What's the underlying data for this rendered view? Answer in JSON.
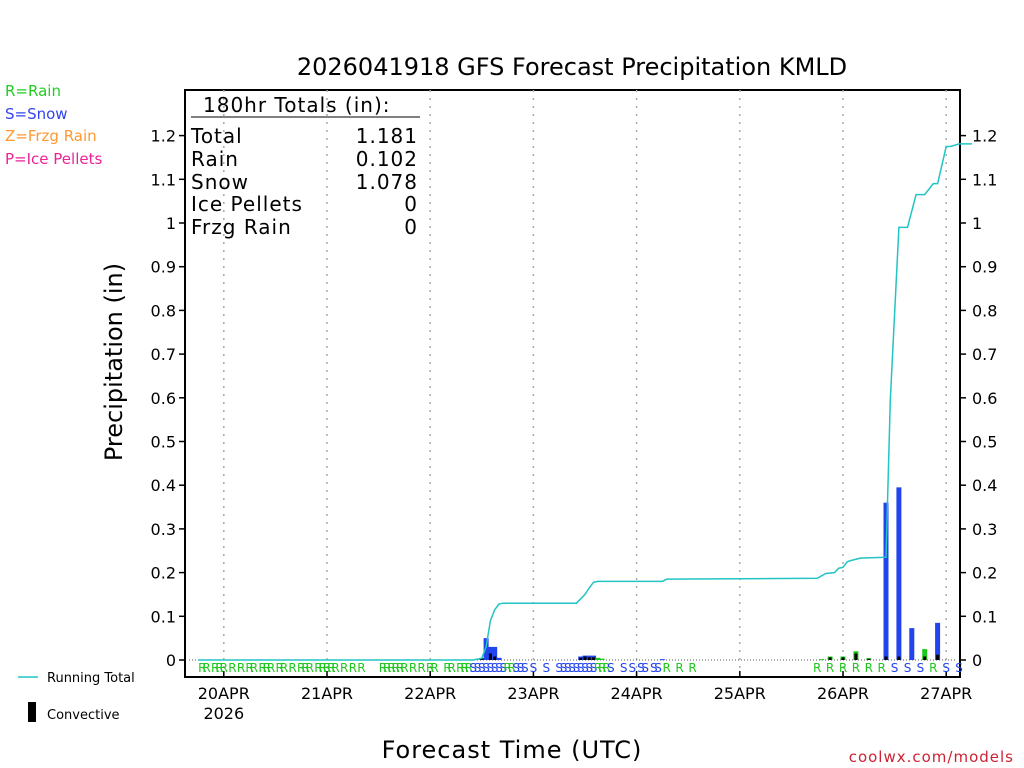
{
  "chart_data": {
    "type": "bar",
    "title": "2026041918 GFS Forecast Precipitation KMLD",
    "xlabel": "Forecast Time (UTC)",
    "ylabel": "Precipitation (in)",
    "ylim": [
      0,
      1.3
    ],
    "xlim_hours": [
      0,
      180
    ],
    "y_ticks": [
      0,
      0.1,
      0.2,
      0.3,
      0.4,
      0.5,
      0.6,
      0.7,
      0.8,
      0.9,
      1,
      1.1,
      1.2
    ],
    "y_tick_labels": [
      "0",
      "0.1",
      "0.2",
      "0.3",
      "0.4",
      "0.5",
      "0.6",
      "0.7",
      "0.8",
      "0.9",
      "1",
      "1.1",
      "1.2"
    ],
    "x_ticks": [
      {
        "hour": 6,
        "label": "20APR",
        "sub": "2026"
      },
      {
        "hour": 30,
        "label": "21APR"
      },
      {
        "hour": 54,
        "label": "22APR"
      },
      {
        "hour": 78,
        "label": "23APR"
      },
      {
        "hour": 102,
        "label": "24APR"
      },
      {
        "hour": 126,
        "label": "25APR"
      },
      {
        "hour": 150,
        "label": "26APR"
      },
      {
        "hour": 174,
        "label": "27APR"
      }
    ],
    "legend_types": [
      {
        "text": "R=Rain",
        "color": "#22cc22"
      },
      {
        "text": "S=Snow",
        "color": "#3344ee"
      },
      {
        "text": "Z=Frzg Rain",
        "color": "#ff9933"
      },
      {
        "text": "P=Ice Pellets",
        "color": "#ee2299"
      }
    ],
    "legend_lines": {
      "running_total": "Running Total",
      "convective": "Convective"
    },
    "totals": {
      "header": "180hr Totals (in):",
      "rows": [
        {
          "label": "Total",
          "value": "1.181"
        },
        {
          "label": "Rain",
          "value": "0.102"
        },
        {
          "label": "Snow",
          "value": "1.078"
        },
        {
          "label": "Ice Pellets",
          "value": "0"
        },
        {
          "label": "Frzg Rain",
          "value": "0"
        }
      ]
    },
    "running_total": {
      "hours": [
        0,
        64,
        66,
        67,
        68,
        69,
        70,
        71,
        88,
        90,
        91,
        92,
        93,
        108,
        109,
        126,
        144,
        146,
        148,
        149,
        150,
        151,
        152,
        154,
        160,
        161,
        163,
        165,
        167,
        169,
        171,
        172,
        174,
        175,
        177,
        180
      ],
      "values": [
        0,
        0,
        0.004,
        0.03,
        0.09,
        0.115,
        0.128,
        0.13,
        0.13,
        0.15,
        0.165,
        0.178,
        0.18,
        0.18,
        0.185,
        0.186,
        0.187,
        0.198,
        0.2,
        0.21,
        0.212,
        0.225,
        0.228,
        0.233,
        0.235,
        0.595,
        0.99,
        0.99,
        1.065,
        1.065,
        1.09,
        1.09,
        1.175,
        1.175,
        1.181,
        1.181
      ]
    },
    "bars": [
      {
        "hour": 66,
        "value": 0.004,
        "type": "snow"
      },
      {
        "hour": 67,
        "value": 0.05,
        "type": "snow"
      },
      {
        "hour": 68,
        "value": 0.03,
        "type": "snow"
      },
      {
        "hour": 69,
        "value": 0.03,
        "type": "snow"
      },
      {
        "hour": 70,
        "value": 0.005,
        "type": "snow"
      },
      {
        "hour": 89,
        "value": 0.008,
        "type": "snow"
      },
      {
        "hour": 90,
        "value": 0.01,
        "type": "snow"
      },
      {
        "hour": 91,
        "value": 0.01,
        "type": "snow"
      },
      {
        "hour": 92,
        "value": 0.01,
        "type": "snow"
      },
      {
        "hour": 93,
        "value": 0.005,
        "type": "rain"
      },
      {
        "hour": 94,
        "value": 0.003,
        "type": "rain"
      },
      {
        "hour": 108,
        "value": 0.002,
        "type": "snow"
      },
      {
        "hour": 145,
        "value": 0.002,
        "type": "rain"
      },
      {
        "hour": 147,
        "value": 0.008,
        "type": "rain"
      },
      {
        "hour": 150,
        "value": 0.008,
        "type": "rain"
      },
      {
        "hour": 153,
        "value": 0.02,
        "type": "rain"
      },
      {
        "hour": 156,
        "value": 0.004,
        "type": "rain"
      },
      {
        "hour": 160,
        "value": 0.36,
        "type": "snow"
      },
      {
        "hour": 163,
        "value": 0.395,
        "type": "snow"
      },
      {
        "hour": 166,
        "value": 0.073,
        "type": "snow"
      },
      {
        "hour": 169,
        "value": 0.025,
        "type": "rain"
      },
      {
        "hour": 172,
        "value": 0.085,
        "type": "snow"
      }
    ],
    "convective": [
      {
        "hour": 66,
        "value": 0.004
      },
      {
        "hour": 68,
        "value": 0.015
      },
      {
        "hour": 69,
        "value": 0.008
      },
      {
        "hour": 89,
        "value": 0.005
      },
      {
        "hour": 90,
        "value": 0.008
      },
      {
        "hour": 91,
        "value": 0.006
      },
      {
        "hour": 92,
        "value": 0.006
      },
      {
        "hour": 147,
        "value": 0.006
      },
      {
        "hour": 150,
        "value": 0.006
      },
      {
        "hour": 153,
        "value": 0.015
      },
      {
        "hour": 156,
        "value": 0.003
      },
      {
        "hour": 160,
        "value": 0.008
      },
      {
        "hour": 163,
        "value": 0.008
      },
      {
        "hour": 169,
        "value": 0.008
      },
      {
        "hour": 172,
        "value": 0.012
      }
    ],
    "precip_type_markers": [
      {
        "hour": 1,
        "label": "R"
      },
      {
        "hour": 2,
        "label": "R"
      },
      {
        "hour": 4,
        "label": "R"
      },
      {
        "hour": 5,
        "label": "R"
      },
      {
        "hour": 6,
        "label": "R"
      },
      {
        "hour": 8,
        "label": "R"
      },
      {
        "hour": 10,
        "label": "R"
      },
      {
        "hour": 12,
        "label": "R"
      },
      {
        "hour": 13,
        "label": "R"
      },
      {
        "hour": 15,
        "label": "R"
      },
      {
        "hour": 16,
        "label": "R"
      },
      {
        "hour": 17,
        "label": "R"
      },
      {
        "hour": 19,
        "label": "R"
      },
      {
        "hour": 20,
        "label": "R"
      },
      {
        "hour": 22,
        "label": "R"
      },
      {
        "hour": 24,
        "label": "R"
      },
      {
        "hour": 25,
        "label": "R"
      },
      {
        "hour": 26,
        "label": "R"
      },
      {
        "hour": 28,
        "label": "R"
      },
      {
        "hour": 29,
        "label": "R"
      },
      {
        "hour": 30,
        "label": "R"
      },
      {
        "hour": 31,
        "label": "R"
      },
      {
        "hour": 32,
        "label": "R"
      },
      {
        "hour": 34,
        "label": "R"
      },
      {
        "hour": 36,
        "label": "R"
      },
      {
        "hour": 38,
        "label": "R"
      },
      {
        "hour": 43,
        "label": "R"
      },
      {
        "hour": 44,
        "label": "R"
      },
      {
        "hour": 45,
        "label": "R"
      },
      {
        "hour": 46,
        "label": "R"
      },
      {
        "hour": 47,
        "label": "R"
      },
      {
        "hour": 48,
        "label": "R"
      },
      {
        "hour": 50,
        "label": "R"
      },
      {
        "hour": 52,
        "label": "R"
      },
      {
        "hour": 54,
        "label": "R"
      },
      {
        "hour": 55,
        "label": "R"
      },
      {
        "hour": 58,
        "label": "R"
      },
      {
        "hour": 59,
        "label": "R"
      },
      {
        "hour": 61,
        "label": "R"
      },
      {
        "hour": 62,
        "label": "R"
      },
      {
        "hour": 63,
        "label": "R"
      },
      {
        "hour": 64,
        "label": "S"
      },
      {
        "hour": 65,
        "label": "S"
      },
      {
        "hour": 66,
        "label": "S"
      },
      {
        "hour": 67,
        "label": "S"
      },
      {
        "hour": 68,
        "label": "S"
      },
      {
        "hour": 69,
        "label": "S"
      },
      {
        "hour": 70,
        "label": "S"
      },
      {
        "hour": 71,
        "label": "S"
      },
      {
        "hour": 72,
        "label": "R"
      },
      {
        "hour": 73,
        "label": "R"
      },
      {
        "hour": 74,
        "label": "S"
      },
      {
        "hour": 75,
        "label": "S"
      },
      {
        "hour": 76,
        "label": "S"
      },
      {
        "hour": 78,
        "label": "S"
      },
      {
        "hour": 81,
        "label": "S"
      },
      {
        "hour": 84,
        "label": "S"
      },
      {
        "hour": 85,
        "label": "S"
      },
      {
        "hour": 86,
        "label": "S"
      },
      {
        "hour": 87,
        "label": "S"
      },
      {
        "hour": 88,
        "label": "S"
      },
      {
        "hour": 89,
        "label": "S"
      },
      {
        "hour": 90,
        "label": "S"
      },
      {
        "hour": 91,
        "label": "S"
      },
      {
        "hour": 92,
        "label": "S"
      },
      {
        "hour": 93,
        "label": "R"
      },
      {
        "hour": 94,
        "label": "R"
      },
      {
        "hour": 95,
        "label": "R"
      },
      {
        "hour": 96,
        "label": "S"
      },
      {
        "hour": 99,
        "label": "S"
      },
      {
        "hour": 101,
        "label": "S"
      },
      {
        "hour": 103,
        "label": "S"
      },
      {
        "hour": 104,
        "label": "S"
      },
      {
        "hour": 106,
        "label": "S"
      },
      {
        "hour": 107,
        "label": "S"
      },
      {
        "hour": 109,
        "label": "R"
      },
      {
        "hour": 112,
        "label": "R"
      },
      {
        "hour": 115,
        "label": "R"
      },
      {
        "hour": 144,
        "label": "R"
      },
      {
        "hour": 147,
        "label": "R"
      },
      {
        "hour": 150,
        "label": "R"
      },
      {
        "hour": 153,
        "label": "R"
      },
      {
        "hour": 156,
        "label": "R"
      },
      {
        "hour": 159,
        "label": "R"
      },
      {
        "hour": 162,
        "label": "S"
      },
      {
        "hour": 165,
        "label": "S"
      },
      {
        "hour": 168,
        "label": "S"
      },
      {
        "hour": 171,
        "label": "R"
      },
      {
        "hour": 174,
        "label": "S"
      },
      {
        "hour": 177,
        "label": "S"
      }
    ]
  },
  "credit": "coolwx.com/models",
  "colors": {
    "rain": "#1ec81e",
    "snow": "#2244ee",
    "convective": "#000000",
    "running_total": "#22c4c4",
    "grid": "#aaaaaa",
    "credit": "#cc2233"
  }
}
